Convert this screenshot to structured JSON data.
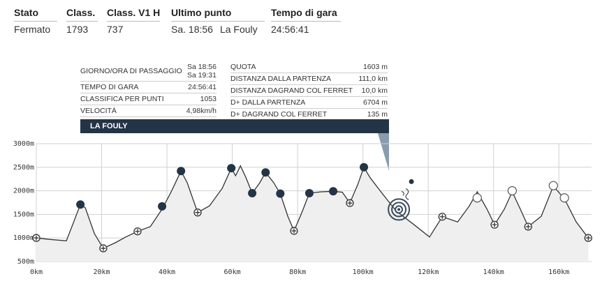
{
  "header": [
    {
      "title": "Stato",
      "values": [
        "Fermato"
      ]
    },
    {
      "title": "Class.",
      "values": [
        "1793"
      ]
    },
    {
      "title": "Class. V1 H",
      "values": [
        "737"
      ]
    },
    {
      "title": "Ultimo punto",
      "values": [
        "Sa. 18:56",
        "La Fouly"
      ]
    },
    {
      "title": "Tempo di gara",
      "values": [
        "24:56:41"
      ]
    }
  ],
  "tooltip": {
    "left": [
      {
        "label": "GIORNO/ORA DI PASSAGGIO",
        "values": [
          "Sa 18:56",
          "Sa 19:31"
        ]
      },
      {
        "label": "TEMPO DI GARA",
        "values": [
          "24:56:41"
        ]
      },
      {
        "label": "CLASSIFICA PER PUNTI",
        "values": [
          "1053"
        ]
      },
      {
        "label": "VELOCITÀ",
        "values": [
          "4,98km/h"
        ]
      }
    ],
    "right": [
      {
        "label": "QUOTA",
        "value": "1603 m"
      },
      {
        "label": "DISTANZA DALLA PARTENZA",
        "value": "111,0 km"
      },
      {
        "label": "DISTANZA DAGRAND COL FERRET",
        "value": "10,0 km"
      },
      {
        "label": "D+ DALLA PARTENZA",
        "value": "6704 m"
      },
      {
        "label": "D+ DAGRAND COL FERRET",
        "value": "135 m"
      }
    ],
    "location": "LA FOULY"
  },
  "chart_data": {
    "type": "area",
    "color": "#333333",
    "fill": "#efefef",
    "grid": true,
    "x": [
      0,
      3.9,
      9.2,
      11.3,
      13.5,
      15,
      17.8,
      20.5,
      24.2,
      27.4,
      31,
      34.9,
      38.5,
      41.3,
      44.3,
      46.2,
      49.4,
      53,
      56.9,
      59.7,
      61,
      62.5,
      64.2,
      66.1,
      68.4,
      70.2,
      72.7,
      74.7,
      77,
      78.9,
      81.3,
      83.6,
      87.3,
      90.9,
      93.7,
      96,
      98.4,
      100.3,
      102.2,
      105.5,
      110.2,
      115.1,
      120.4,
      124.3,
      129,
      132.6,
      135,
      138,
      140.3,
      143.3,
      145.7,
      148.2,
      150.6,
      154.6,
      158.3,
      161.7,
      165.3,
      169
    ],
    "values": [
      1000,
      970,
      940,
      1310,
      1710,
      1640,
      1090,
      780,
      900,
      1020,
      1140,
      1240,
      1610,
      1980,
      2420,
      2170,
      1540,
      1680,
      2050,
      2480,
      2320,
      2530,
      2280,
      1950,
      2170,
      2390,
      2170,
      1940,
      1460,
      1150,
      1540,
      1950,
      1980,
      1990,
      1970,
      1740,
      2130,
      2500,
      2280,
      1980,
      1570,
      1310,
      1020,
      1450,
      1340,
      1680,
      1980,
      1610,
      1280,
      1610,
      1980,
      1610,
      1240,
      1460,
      2100,
      1830,
      1340,
      1000
    ],
    "checkpoints": {
      "x": [
        0,
        13.5,
        20.5,
        31,
        38.5,
        44.3,
        49.4,
        59.7,
        66.1,
        70.2,
        74.7,
        78.9,
        83.6,
        90.9,
        96,
        100.3,
        124.3,
        135,
        140.3,
        145.7,
        150.6,
        158.3,
        161.7,
        169
      ],
      "values": [
        1000,
        1710,
        780,
        1140,
        1670,
        2420,
        1540,
        2480,
        1950,
        2390,
        1940,
        1150,
        1950,
        1990,
        1740,
        2500,
        1450,
        1850,
        1280,
        2000,
        1240,
        2110,
        1850,
        1000
      ],
      "kinds": [
        "cross",
        "filled",
        "cross",
        "cross",
        "filled",
        "filled",
        "cross",
        "filled",
        "filled",
        "filled",
        "filled",
        "cross",
        "filled",
        "filled",
        "cross",
        "filled",
        "cross",
        "open",
        "cross",
        "open",
        "cross",
        "open",
        "open",
        "cross"
      ]
    },
    "current_position": {
      "x": 111,
      "value": 1603
    },
    "xlim": [
      0,
      170
    ],
    "ylim": [
      500,
      3000
    ],
    "xticks": [
      {
        "value": 0,
        "label": "0km"
      },
      {
        "value": 20,
        "label": "20km"
      },
      {
        "value": 40,
        "label": "40km"
      },
      {
        "value": 60,
        "label": "60km"
      },
      {
        "value": 80,
        "label": "80km"
      },
      {
        "value": 100,
        "label": "100km"
      },
      {
        "value": 120,
        "label": "120km"
      },
      {
        "value": 140,
        "label": "140km"
      },
      {
        "value": 160,
        "label": "160km"
      }
    ],
    "yticks": [
      {
        "value": 500,
        "label": "500m"
      },
      {
        "value": 1000,
        "label": "1000m"
      },
      {
        "value": 1500,
        "label": "1500m"
      },
      {
        "value": 2000,
        "label": "2000m"
      },
      {
        "value": 2500,
        "label": "2500m"
      },
      {
        "value": 3000,
        "label": "3000m"
      }
    ]
  }
}
